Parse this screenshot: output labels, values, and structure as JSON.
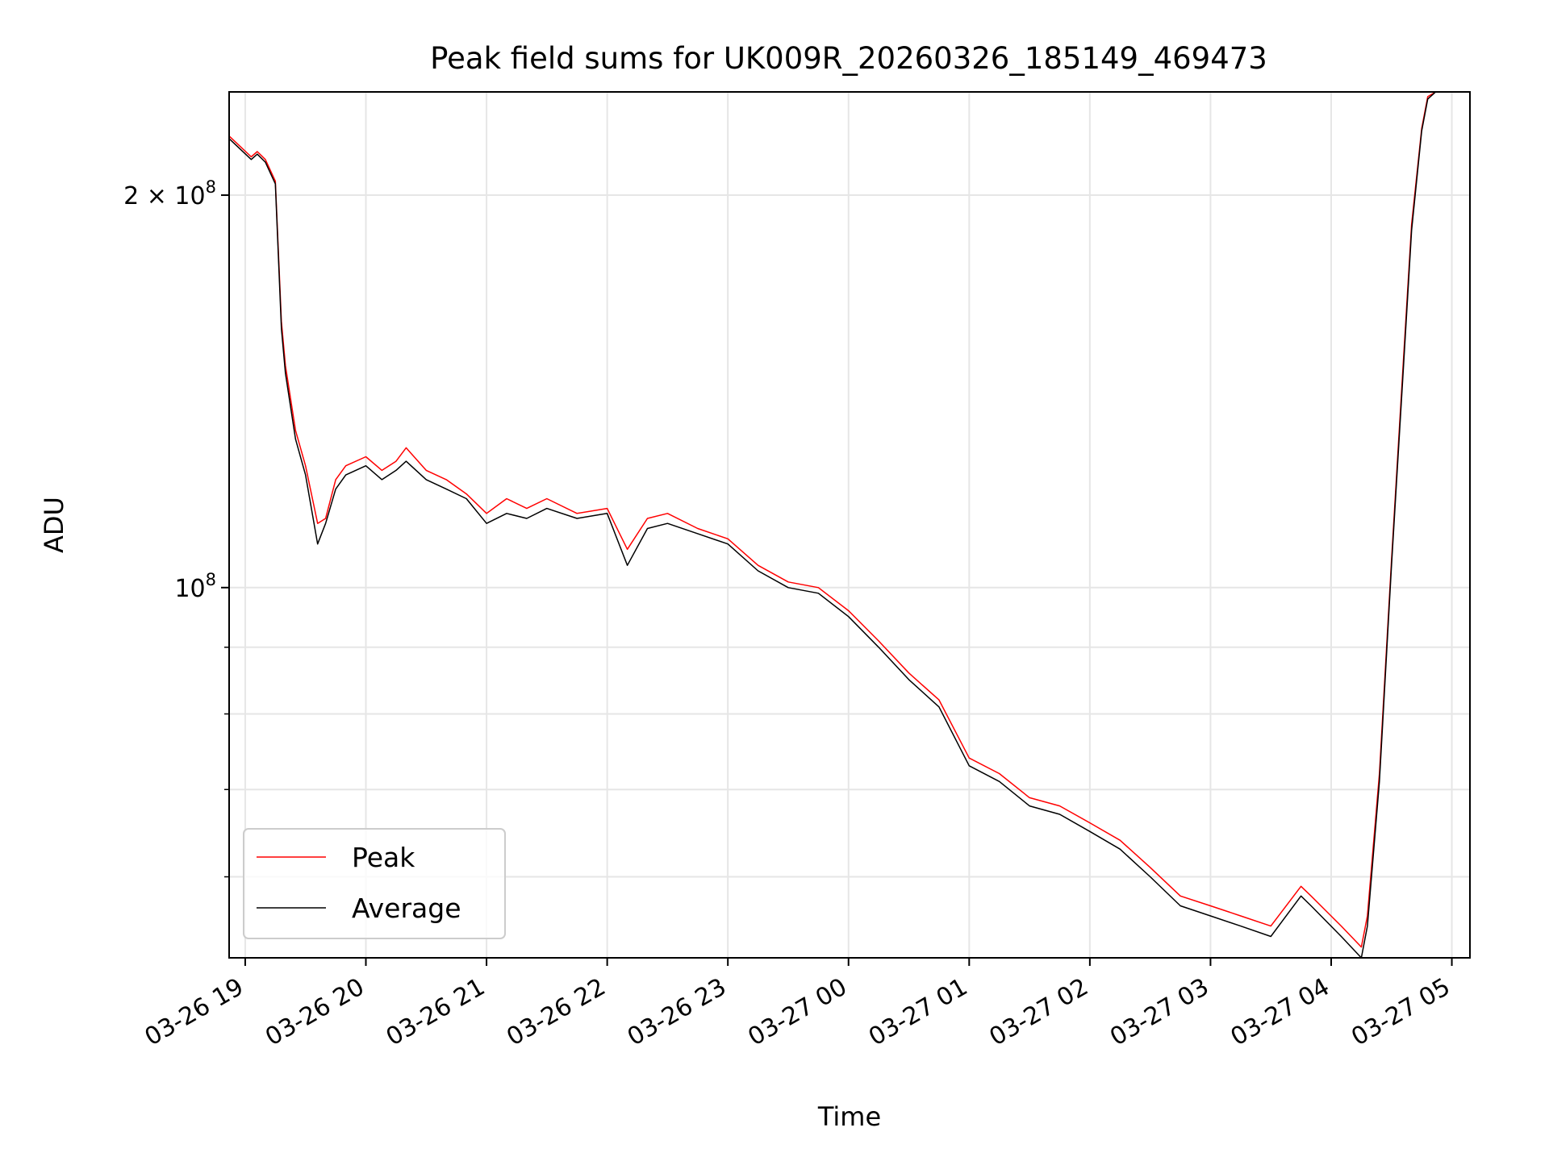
{
  "chart_data": {
    "type": "line",
    "title": "Peak field sums for UK009R_20260326_185149_469473",
    "xlabel": "Time",
    "ylabel": "ADU",
    "yscale": "log",
    "xlim": [
      "2026-03-26T18:52",
      "2026-03-27T05:09"
    ],
    "ylim": [
      52000000,
      240000000
    ],
    "grid": true,
    "legend_position": "lower-left",
    "x_ticks": [
      "03-26 19",
      "03-26 20",
      "03-26 21",
      "03-26 22",
      "03-26 23",
      "03-27 00",
      "03-27 01",
      "03-27 02",
      "03-27 03",
      "03-27 04",
      "03-27 05"
    ],
    "y_major_ticks": [
      {
        "value": 100000000,
        "label_base": "10",
        "label_exp": "8"
      },
      {
        "value": 200000000,
        "label_base": "2 × 10",
        "label_exp": "8"
      }
    ],
    "y_minor_ticks": [
      60000000,
      70000000,
      80000000,
      90000000
    ],
    "series": [
      {
        "name": "Peak",
        "color": "#ff0000",
        "x": [
          "2026-03-26T18:52",
          "2026-03-26T19:03",
          "2026-03-26T19:06",
          "2026-03-26T19:10",
          "2026-03-26T19:15",
          "2026-03-26T19:18",
          "2026-03-26T19:20",
          "2026-03-26T19:25",
          "2026-03-26T19:30",
          "2026-03-26T19:36",
          "2026-03-26T19:40",
          "2026-03-26T19:45",
          "2026-03-26T19:50",
          "2026-03-26T20:00",
          "2026-03-26T20:08",
          "2026-03-26T20:15",
          "2026-03-26T20:20",
          "2026-03-26T20:30",
          "2026-03-26T20:40",
          "2026-03-26T20:50",
          "2026-03-26T21:00",
          "2026-03-26T21:10",
          "2026-03-26T21:20",
          "2026-03-26T21:30",
          "2026-03-26T21:45",
          "2026-03-26T22:00",
          "2026-03-26T22:10",
          "2026-03-26T22:20",
          "2026-03-26T22:30",
          "2026-03-26T22:45",
          "2026-03-26T23:00",
          "2026-03-26T23:15",
          "2026-03-26T23:30",
          "2026-03-26T23:45",
          "2026-03-27T00:00",
          "2026-03-27T00:15",
          "2026-03-27T00:30",
          "2026-03-27T00:45",
          "2026-03-27T01:00",
          "2026-03-27T01:15",
          "2026-03-27T01:30",
          "2026-03-27T01:45",
          "2026-03-27T02:00",
          "2026-03-27T02:15",
          "2026-03-27T02:30",
          "2026-03-27T02:45",
          "2026-03-27T03:00",
          "2026-03-27T03:15",
          "2026-03-27T03:30",
          "2026-03-27T03:45",
          "2026-03-27T03:50",
          "2026-03-27T04:05",
          "2026-03-27T04:15",
          "2026-03-27T04:18",
          "2026-03-27T04:24",
          "2026-03-27T04:30",
          "2026-03-27T04:36",
          "2026-03-27T04:40",
          "2026-03-27T04:45",
          "2026-03-27T04:48",
          "2026-03-27T04:52",
          "2026-03-27T04:55"
        ],
        "y": [
          222000000,
          214000000,
          216000000,
          213000000,
          205000000,
          160000000,
          148000000,
          132000000,
          124000000,
          112000000,
          113000000,
          121000000,
          124000000,
          126000000,
          123000000,
          125000000,
          128000000,
          123000000,
          121000000,
          118000000,
          114000000,
          117000000,
          115000000,
          117000000,
          114000000,
          115000000,
          107000000,
          113000000,
          114000000,
          111000000,
          109000000,
          104000000,
          101000000,
          100000000,
          96000000,
          91000000,
          86000000,
          82000000,
          74000000,
          72000000,
          69000000,
          68000000,
          66000000,
          64000000,
          61000000,
          58000000,
          57000000,
          56000000,
          55000000,
          59000000,
          58000000,
          55000000,
          53000000,
          56000000,
          72000000,
          105000000,
          150000000,
          190000000,
          225000000,
          238000000,
          240000000,
          240000000
        ]
      },
      {
        "name": "Average",
        "color": "#000000",
        "x": [
          "2026-03-26T18:52",
          "2026-03-26T19:03",
          "2026-03-26T19:06",
          "2026-03-26T19:10",
          "2026-03-26T19:15",
          "2026-03-26T19:18",
          "2026-03-26T19:20",
          "2026-03-26T19:25",
          "2026-03-26T19:30",
          "2026-03-26T19:36",
          "2026-03-26T19:40",
          "2026-03-26T19:45",
          "2026-03-26T19:50",
          "2026-03-26T20:00",
          "2026-03-26T20:08",
          "2026-03-26T20:15",
          "2026-03-26T20:20",
          "2026-03-26T20:30",
          "2026-03-26T20:40",
          "2026-03-26T20:50",
          "2026-03-26T21:00",
          "2026-03-26T21:10",
          "2026-03-26T21:20",
          "2026-03-26T21:30",
          "2026-03-26T21:45",
          "2026-03-26T22:00",
          "2026-03-26T22:10",
          "2026-03-26T22:20",
          "2026-03-26T22:30",
          "2026-03-26T22:45",
          "2026-03-26T23:00",
          "2026-03-26T23:15",
          "2026-03-26T23:30",
          "2026-03-26T23:45",
          "2026-03-27T00:00",
          "2026-03-27T00:15",
          "2026-03-27T00:30",
          "2026-03-27T00:45",
          "2026-03-27T01:00",
          "2026-03-27T01:15",
          "2026-03-27T01:30",
          "2026-03-27T01:45",
          "2026-03-27T02:00",
          "2026-03-27T02:15",
          "2026-03-27T02:30",
          "2026-03-27T02:45",
          "2026-03-27T03:00",
          "2026-03-27T03:15",
          "2026-03-27T03:30",
          "2026-03-27T03:45",
          "2026-03-27T03:50",
          "2026-03-27T04:05",
          "2026-03-27T04:15",
          "2026-03-27T04:18",
          "2026-03-27T04:24",
          "2026-03-27T04:30",
          "2026-03-27T04:36",
          "2026-03-27T04:40",
          "2026-03-27T04:45",
          "2026-03-27T04:48",
          "2026-03-27T04:52",
          "2026-03-27T04:55"
        ],
        "y": [
          221000000,
          213000000,
          215000000,
          212000000,
          204000000,
          158000000,
          146000000,
          130000000,
          122000000,
          108000000,
          112000000,
          119000000,
          122000000,
          124000000,
          121000000,
          123000000,
          125000000,
          121000000,
          119000000,
          117000000,
          112000000,
          114000000,
          113000000,
          115000000,
          113000000,
          114000000,
          104000000,
          111000000,
          112000000,
          110000000,
          108000000,
          103000000,
          100000000,
          99000000,
          95000000,
          90000000,
          85000000,
          81000000,
          73000000,
          71000000,
          68000000,
          67000000,
          65000000,
          63000000,
          60000000,
          57000000,
          56000000,
          55000000,
          54000000,
          58000000,
          57000000,
          54000000,
          52000000,
          55000000,
          71000000,
          104000000,
          148000000,
          188000000,
          224000000,
          237000000,
          240000000,
          240000000
        ]
      }
    ]
  }
}
